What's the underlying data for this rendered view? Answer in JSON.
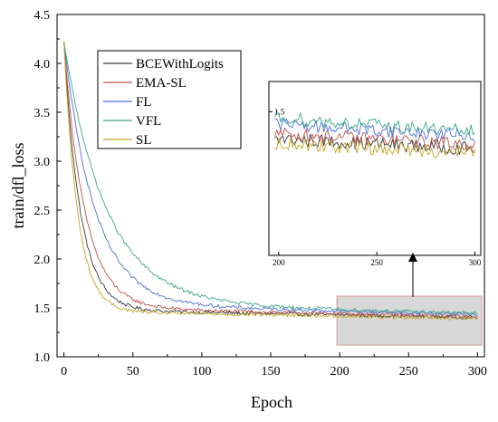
{
  "chart_data": {
    "type": "line",
    "xlabel": "Epoch",
    "ylabel": "train/dfl_loss",
    "xlim": [
      -5,
      305
    ],
    "ylim": [
      1.0,
      4.5
    ],
    "xticks": [
      "0",
      "50",
      "100",
      "150",
      "200",
      "250",
      "300"
    ],
    "yticks": [
      "1.0",
      "1.5",
      "2.0",
      "2.5",
      "3.0",
      "3.5",
      "4.0",
      "4.5"
    ],
    "legend_position": "top-left",
    "grid": false,
    "start_value": 4.22,
    "series": [
      {
        "name": "BCEWithLogits",
        "color": "#3a3a3a",
        "decay_tau": 12,
        "plateau": 1.26,
        "offset": 0.0,
        "slope": 0.00026
      },
      {
        "name": "EMA-SL",
        "color": "#c0504d",
        "decay_tau": 15,
        "plateau": 1.27,
        "offset": 0.02,
        "slope": 0.00026
      },
      {
        "name": "FL",
        "color": "#4f6fd6",
        "decay_tau": 22,
        "plateau": 1.29,
        "offset": 0.05,
        "slope": 0.00026
      },
      {
        "name": "VFL",
        "color": "#3aa888",
        "decay_tau": 30,
        "plateau": 1.3,
        "offset": 0.07,
        "slope": 0.00026
      },
      {
        "name": "SL",
        "color": "#c7a623",
        "decay_tau": 10,
        "plateau": 1.25,
        "offset": -0.01,
        "slope": 0.00026
      }
    ],
    "highlight_region": {
      "x": [
        198,
        303
      ],
      "y": [
        1.12,
        1.62
      ],
      "fill": "#d8d8d8",
      "stroke": "#d99a9a"
    },
    "inset": {
      "xlim": [
        195,
        303
      ],
      "ylim": [
        1.12,
        1.58
      ],
      "xticks": [
        "200",
        "250",
        "300"
      ],
      "yticks": [
        "1.5"
      ]
    }
  }
}
